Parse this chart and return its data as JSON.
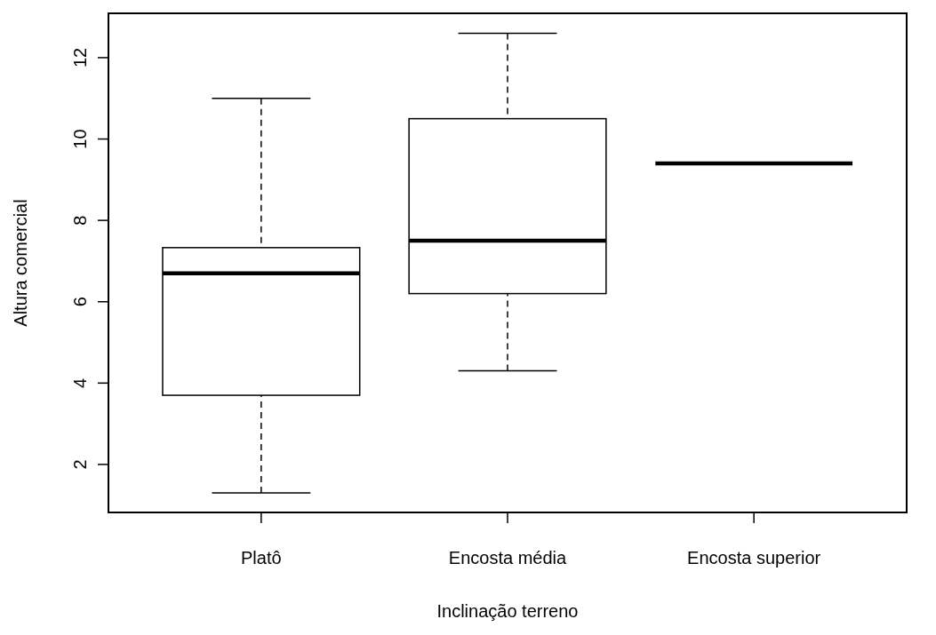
{
  "chart_data": {
    "type": "box",
    "xlabel": "Inclinação terreno",
    "ylabel": "Altura comercial",
    "categories": [
      "Platô",
      "Encosta média",
      "Encosta superior"
    ],
    "boxes": [
      {
        "low": 1.3,
        "q1": 3.7,
        "median": 6.7,
        "q3": 7.33,
        "high": 11.0
      },
      {
        "low": 4.3,
        "q1": 6.2,
        "median": 7.5,
        "q3": 10.5,
        "high": 12.6
      },
      {
        "low": 9.4,
        "q1": 9.4,
        "median": 9.4,
        "q3": 9.4,
        "high": 9.4
      }
    ],
    "ylim": [
      0.82,
      13.09
    ],
    "yticks": [
      2,
      4,
      6,
      8,
      10,
      12
    ]
  }
}
